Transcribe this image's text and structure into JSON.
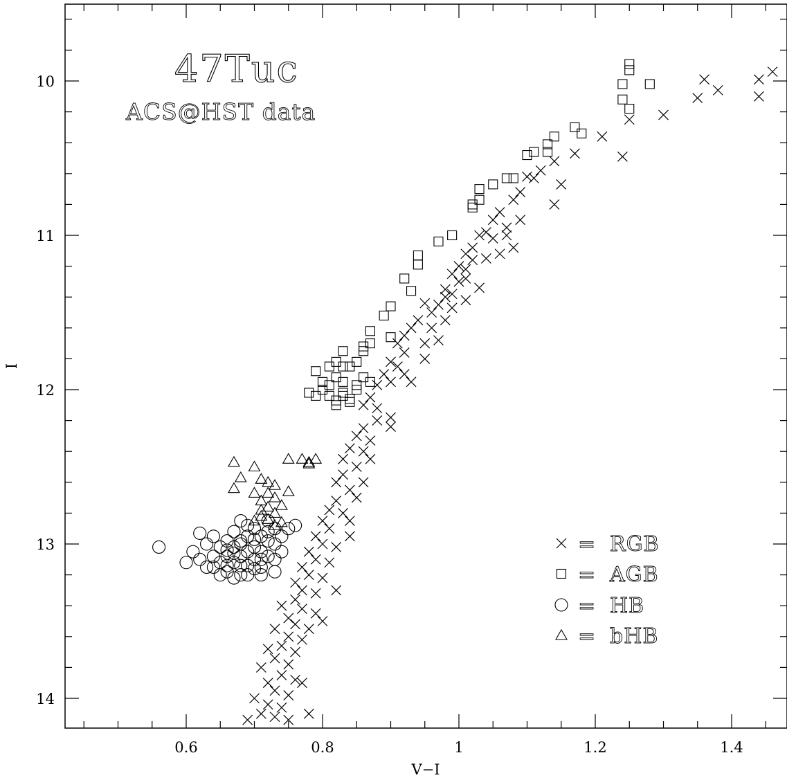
{
  "chart_data": {
    "type": "scatter",
    "title": "47Tuc",
    "subtitle": "ACS@HST data",
    "xlabel": "V−I",
    "ylabel": "I",
    "xlim": [
      0.42,
      1.48
    ],
    "ylim": [
      14.2,
      9.5
    ],
    "y_inverted": true,
    "grid": false,
    "legend_position": "bottom-right",
    "x_ticks": [
      {
        "value": 0.6,
        "label": "0.6"
      },
      {
        "value": 0.8,
        "label": "0.8"
      },
      {
        "value": 1.0,
        "label": "1"
      },
      {
        "value": 1.2,
        "label": "1.2"
      },
      {
        "value": 1.4,
        "label": "1.4"
      }
    ],
    "y_ticks": [
      {
        "value": 10,
        "label": "10"
      },
      {
        "value": 11,
        "label": "11"
      },
      {
        "value": 12,
        "label": "12"
      },
      {
        "value": 13,
        "label": "13"
      },
      {
        "value": 14,
        "label": "14"
      }
    ],
    "legend": [
      {
        "marker": "cross",
        "label": "RGB"
      },
      {
        "marker": "square",
        "label": "AGB"
      },
      {
        "marker": "circle",
        "label": "HB"
      },
      {
        "marker": "triangle",
        "label": "bHB"
      }
    ],
    "legend_equals": "=",
    "series": [
      {
        "name": "RGB",
        "marker": "cross",
        "points": [
          [
            1.46,
            9.94
          ],
          [
            1.44,
            9.99
          ],
          [
            1.44,
            10.1
          ],
          [
            1.36,
            9.99
          ],
          [
            1.38,
            10.06
          ],
          [
            1.35,
            10.11
          ],
          [
            1.3,
            10.22
          ],
          [
            1.25,
            10.25
          ],
          [
            1.21,
            10.36
          ],
          [
            1.24,
            10.49
          ],
          [
            1.17,
            10.47
          ],
          [
            1.14,
            10.52
          ],
          [
            1.12,
            10.58
          ],
          [
            1.11,
            10.63
          ],
          [
            1.15,
            10.67
          ],
          [
            1.14,
            10.8
          ],
          [
            1.1,
            10.62
          ],
          [
            1.09,
            10.72
          ],
          [
            1.08,
            10.77
          ],
          [
            1.06,
            10.85
          ],
          [
            1.05,
            10.9
          ],
          [
            1.07,
            10.95
          ],
          [
            1.04,
            10.98
          ],
          [
            1.03,
            11.0
          ],
          [
            1.05,
            11.02
          ],
          [
            1.07,
            11.0
          ],
          [
            1.08,
            11.08
          ],
          [
            1.04,
            11.15
          ],
          [
            1.02,
            11.08
          ],
          [
            1.01,
            11.12
          ],
          [
            1.0,
            11.2
          ],
          [
            1.02,
            11.16
          ],
          [
            0.99,
            11.25
          ],
          [
            1.0,
            11.3
          ],
          [
            1.01,
            11.28
          ],
          [
            0.98,
            11.35
          ],
          [
            1.03,
            11.34
          ],
          [
            1.01,
            11.42
          ],
          [
            0.98,
            11.4
          ],
          [
            0.97,
            11.45
          ],
          [
            0.99,
            11.47
          ],
          [
            0.96,
            11.5
          ],
          [
            0.95,
            11.44
          ],
          [
            0.94,
            11.55
          ],
          [
            0.96,
            11.6
          ],
          [
            0.98,
            11.55
          ],
          [
            0.93,
            11.6
          ],
          [
            0.92,
            11.65
          ],
          [
            0.95,
            11.7
          ],
          [
            0.91,
            11.7
          ],
          [
            0.92,
            11.76
          ],
          [
            0.9,
            11.82
          ],
          [
            0.91,
            11.85
          ],
          [
            0.89,
            11.9
          ],
          [
            0.9,
            11.95
          ],
          [
            0.92,
            11.9
          ],
          [
            0.88,
            11.97
          ],
          [
            0.87,
            12.05
          ],
          [
            0.86,
            12.1
          ],
          [
            0.88,
            12.12
          ],
          [
            0.9,
            12.18
          ],
          [
            0.9,
            12.24
          ],
          [
            0.88,
            12.2
          ],
          [
            0.86,
            12.25
          ],
          [
            0.85,
            12.3
          ],
          [
            0.87,
            12.33
          ],
          [
            0.86,
            12.4
          ],
          [
            0.84,
            12.38
          ],
          [
            0.83,
            12.45
          ],
          [
            0.85,
            12.5
          ],
          [
            0.83,
            12.55
          ],
          [
            0.82,
            12.6
          ],
          [
            0.84,
            12.65
          ],
          [
            0.85,
            12.7
          ],
          [
            0.82,
            12.72
          ],
          [
            0.81,
            12.78
          ],
          [
            0.83,
            12.8
          ],
          [
            0.84,
            12.85
          ],
          [
            0.8,
            12.85
          ],
          [
            0.81,
            12.9
          ],
          [
            0.79,
            12.95
          ],
          [
            0.8,
            13.0
          ],
          [
            0.82,
            13.02
          ],
          [
            0.78,
            13.05
          ],
          [
            0.79,
            13.1
          ],
          [
            0.81,
            13.12
          ],
          [
            0.77,
            13.15
          ],
          [
            0.78,
            13.2
          ],
          [
            0.8,
            13.22
          ],
          [
            0.76,
            13.25
          ],
          [
            0.77,
            13.3
          ],
          [
            0.79,
            13.32
          ],
          [
            0.76,
            13.36
          ],
          [
            0.74,
            13.4
          ],
          [
            0.77,
            13.42
          ],
          [
            0.79,
            13.45
          ],
          [
            0.75,
            13.48
          ],
          [
            0.76,
            13.52
          ],
          [
            0.78,
            13.55
          ],
          [
            0.73,
            13.55
          ],
          [
            0.75,
            13.6
          ],
          [
            0.77,
            13.62
          ],
          [
            0.74,
            13.66
          ],
          [
            0.72,
            13.68
          ],
          [
            0.76,
            13.7
          ],
          [
            0.73,
            13.74
          ],
          [
            0.75,
            13.78
          ],
          [
            0.71,
            13.8
          ],
          [
            0.74,
            13.85
          ],
          [
            0.76,
            13.88
          ],
          [
            0.72,
            13.9
          ],
          [
            0.73,
            13.95
          ],
          [
            0.75,
            13.98
          ],
          [
            0.7,
            14.0
          ],
          [
            0.72,
            14.04
          ],
          [
            0.74,
            14.06
          ],
          [
            0.71,
            14.1
          ],
          [
            0.73,
            14.12
          ],
          [
            0.69,
            14.14
          ],
          [
            0.75,
            14.14
          ],
          [
            0.78,
            14.1
          ],
          [
            0.77,
            13.9
          ],
          [
            0.8,
            13.5
          ],
          [
            0.82,
            13.3
          ],
          [
            0.84,
            12.95
          ],
          [
            0.86,
            12.6
          ],
          [
            0.87,
            12.45
          ],
          [
            0.93,
            11.95
          ],
          [
            0.95,
            11.8
          ],
          [
            0.97,
            11.68
          ],
          [
            0.99,
            11.38
          ],
          [
            1.01,
            11.22
          ],
          [
            1.06,
            11.12
          ],
          [
            1.09,
            10.9
          ]
        ]
      },
      {
        "name": "AGB",
        "marker": "square",
        "points": [
          [
            1.25,
            9.89
          ],
          [
            1.25,
            9.93
          ],
          [
            1.24,
            10.02
          ],
          [
            1.28,
            10.02
          ],
          [
            1.24,
            10.12
          ],
          [
            1.25,
            10.18
          ],
          [
            1.17,
            10.3
          ],
          [
            1.18,
            10.34
          ],
          [
            1.14,
            10.36
          ],
          [
            1.13,
            10.41
          ],
          [
            1.13,
            10.46
          ],
          [
            1.11,
            10.46
          ],
          [
            1.1,
            10.48
          ],
          [
            1.07,
            10.63
          ],
          [
            1.08,
            10.63
          ],
          [
            1.05,
            10.67
          ],
          [
            1.03,
            10.7
          ],
          [
            1.03,
            10.77
          ],
          [
            1.02,
            10.8
          ],
          [
            1.02,
            10.82
          ],
          [
            0.99,
            11.0
          ],
          [
            0.97,
            11.04
          ],
          [
            0.94,
            11.13
          ],
          [
            0.94,
            11.19
          ],
          [
            0.92,
            11.28
          ],
          [
            0.93,
            11.36
          ],
          [
            0.9,
            11.46
          ],
          [
            0.89,
            11.52
          ],
          [
            0.87,
            11.62
          ],
          [
            0.9,
            11.66
          ],
          [
            0.87,
            11.7
          ],
          [
            0.86,
            11.72
          ],
          [
            0.86,
            11.75
          ],
          [
            0.83,
            11.75
          ],
          [
            0.82,
            11.82
          ],
          [
            0.83,
            11.85
          ],
          [
            0.81,
            11.85
          ],
          [
            0.84,
            11.85
          ],
          [
            0.85,
            11.82
          ],
          [
            0.79,
            11.88
          ],
          [
            0.82,
            11.92
          ],
          [
            0.8,
            11.95
          ],
          [
            0.81,
            11.97
          ],
          [
            0.83,
            11.95
          ],
          [
            0.86,
            11.92
          ],
          [
            0.85,
            11.97
          ],
          [
            0.87,
            11.95
          ],
          [
            0.78,
            12.02
          ],
          [
            0.79,
            12.04
          ],
          [
            0.81,
            12.04
          ],
          [
            0.83,
            12.02
          ],
          [
            0.85,
            12.0
          ],
          [
            0.82,
            12.07
          ],
          [
            0.84,
            12.06
          ],
          [
            0.82,
            12.1
          ],
          [
            0.84,
            12.08
          ],
          [
            0.83,
            12.04
          ],
          [
            0.8,
            12.0
          ]
        ]
      },
      {
        "name": "HB",
        "marker": "circle",
        "points": [
          [
            0.56,
            13.02
          ],
          [
            0.6,
            13.12
          ],
          [
            0.61,
            13.05
          ],
          [
            0.62,
            12.93
          ],
          [
            0.62,
            13.1
          ],
          [
            0.63,
            13.0
          ],
          [
            0.63,
            13.15
          ],
          [
            0.64,
            13.08
          ],
          [
            0.64,
            12.95
          ],
          [
            0.65,
            13.12
          ],
          [
            0.65,
            13.02
          ],
          [
            0.66,
            13.18
          ],
          [
            0.66,
            12.98
          ],
          [
            0.66,
            13.08
          ],
          [
            0.67,
            13.12
          ],
          [
            0.67,
            13.02
          ],
          [
            0.67,
            12.92
          ],
          [
            0.68,
            13.2
          ],
          [
            0.68,
            13.08
          ],
          [
            0.68,
            12.85
          ],
          [
            0.68,
            13.0
          ],
          [
            0.69,
            13.14
          ],
          [
            0.69,
            13.05
          ],
          [
            0.69,
            12.95
          ],
          [
            0.7,
            13.1
          ],
          [
            0.7,
            13.02
          ],
          [
            0.7,
            12.9
          ],
          [
            0.71,
            13.15
          ],
          [
            0.71,
            13.05
          ],
          [
            0.71,
            12.95
          ],
          [
            0.72,
            13.08
          ],
          [
            0.72,
            12.98
          ],
          [
            0.72,
            12.85
          ],
          [
            0.73,
            13.1
          ],
          [
            0.73,
            13.0
          ],
          [
            0.73,
            12.9
          ],
          [
            0.74,
            12.95
          ],
          [
            0.74,
            13.05
          ],
          [
            0.75,
            12.9
          ],
          [
            0.76,
            12.88
          ],
          [
            0.65,
            13.2
          ],
          [
            0.67,
            13.22
          ],
          [
            0.69,
            13.2
          ],
          [
            0.71,
            13.2
          ],
          [
            0.73,
            13.18
          ],
          [
            0.64,
            13.15
          ],
          [
            0.66,
            13.14
          ],
          [
            0.68,
            13.14
          ],
          [
            0.7,
            13.16
          ],
          [
            0.7,
            12.97
          ],
          [
            0.68,
            12.98
          ],
          [
            0.66,
            13.04
          ],
          [
            0.72,
            12.92
          ],
          [
            0.69,
            12.88
          ],
          [
            0.67,
            13.06
          ],
          [
            0.71,
            13.1
          ]
        ]
      },
      {
        "name": "bHB",
        "marker": "triangle",
        "points": [
          [
            0.67,
            12.47
          ],
          [
            0.67,
            12.64
          ],
          [
            0.68,
            12.57
          ],
          [
            0.7,
            12.5
          ],
          [
            0.71,
            12.58
          ],
          [
            0.72,
            12.6
          ],
          [
            0.7,
            12.67
          ],
          [
            0.71,
            12.72
          ],
          [
            0.72,
            12.67
          ],
          [
            0.73,
            12.62
          ],
          [
            0.73,
            12.7
          ],
          [
            0.72,
            12.76
          ],
          [
            0.71,
            12.82
          ],
          [
            0.73,
            12.8
          ],
          [
            0.74,
            12.75
          ],
          [
            0.75,
            12.66
          ],
          [
            0.75,
            12.45
          ],
          [
            0.77,
            12.45
          ],
          [
            0.78,
            12.47
          ],
          [
            0.78,
            12.48
          ],
          [
            0.79,
            12.45
          ],
          [
            0.71,
            12.78
          ],
          [
            0.72,
            12.84
          ],
          [
            0.73,
            12.88
          ],
          [
            0.7,
            12.85
          ],
          [
            0.74,
            12.86
          ]
        ]
      }
    ]
  }
}
